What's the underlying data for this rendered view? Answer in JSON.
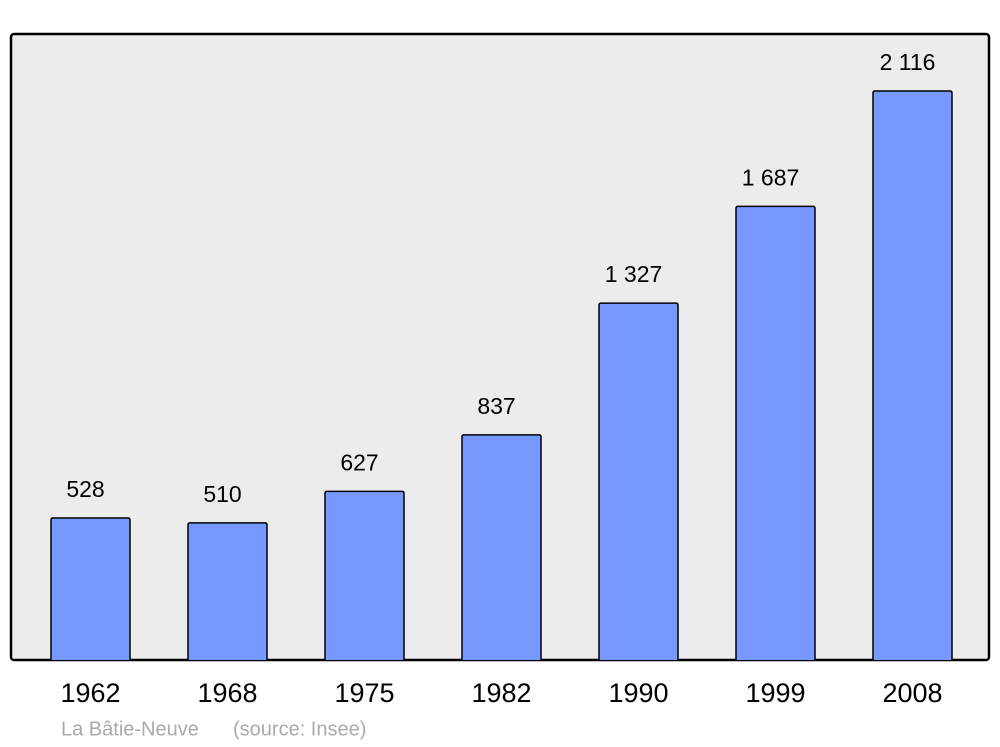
{
  "chart_data": {
    "type": "bar",
    "title": "La Bâtie-Neuve",
    "source": "(source: Insee)",
    "categories": [
      "1962",
      "1968",
      "1975",
      "1982",
      "1990",
      "1999",
      "2008"
    ],
    "values": [
      528,
      510,
      627,
      837,
      1327,
      1687,
      2116
    ],
    "value_labels": [
      "528",
      "510",
      "627",
      "837",
      "1 327",
      "1 687",
      "2 116"
    ],
    "color": "#7799ff"
  }
}
